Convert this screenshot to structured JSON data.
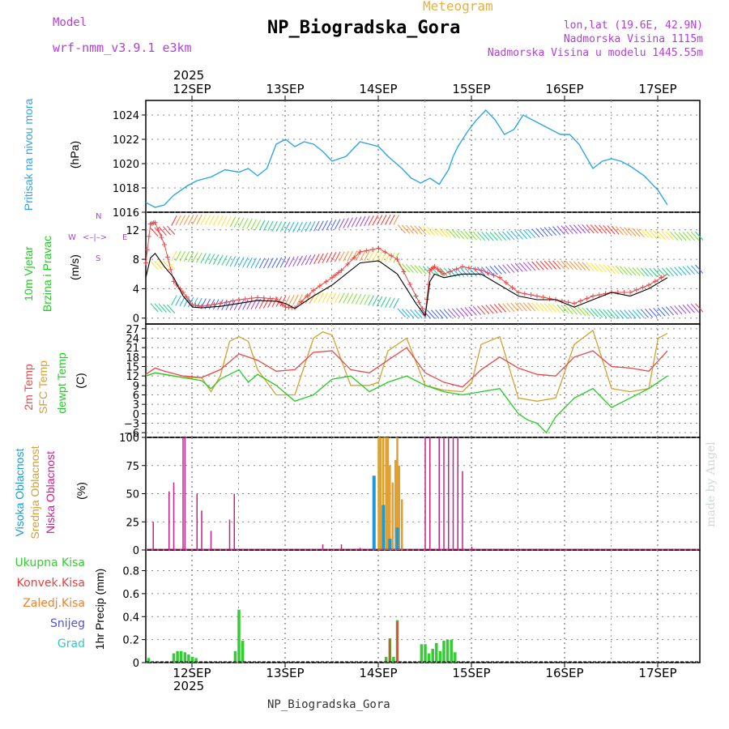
{
  "header": {
    "model_label": "Model",
    "model_name": "wrf-nmm_v3.9.1 e3km",
    "product": "Meteogram",
    "station": "NP_Biogradska_Gora",
    "coords": "lon,lat (19.6E, 42.9N)",
    "elevation": "Nadmorska Visina 1115m",
    "model_elevation": "Nadmorska Visina u modelu 1445.55m",
    "footer_station": "NP_Biogradska_Gora",
    "credit": "made by Angel"
  },
  "time_axis": {
    "year": "2025",
    "days": [
      "12SEP",
      "13SEP",
      "14SEP",
      "15SEP",
      "16SEP",
      "17SEP"
    ]
  },
  "colors": {
    "pressure": "#2aa6e8",
    "temp2m": "#e84848",
    "sfc_temp": "#d4a030",
    "dewpoint": "#22cc22",
    "high_cloud": "#1a9ad6",
    "mid_cloud": "#e0a030",
    "low_cloud": "#c8208a",
    "precip_total": "#33cc33",
    "precip_conv": "#e84040",
    "precip_freeze": "#f08030",
    "snow": "#5050e0",
    "hail": "#30c8c8",
    "wind_speed": "#000000",
    "wind_gust": "#e84848",
    "wind_dir_label": "#b040d8"
  },
  "chart_data": [
    {
      "type": "line",
      "title": "Pritisak na nivou mora",
      "ylabel": "(hPa)",
      "ylim": [
        1016,
        1025.2
      ],
      "yticks": [
        "1016",
        "1018",
        "1020",
        "1022",
        "1024"
      ],
      "series": [
        {
          "name": "MSL pressure",
          "x": [
            0,
            0.1,
            0.2,
            0.3,
            0.45,
            0.55,
            0.7,
            0.85,
            1,
            1.1,
            1.2,
            1.3,
            1.4,
            1.5,
            1.6,
            1.7,
            1.8,
            1.9,
            2,
            2.15,
            2.3,
            2.5,
            2.6,
            2.75,
            2.85,
            2.95,
            3.05,
            3.15,
            3.25,
            3.3,
            3.35,
            3.45,
            3.55,
            3.65,
            3.75,
            3.85,
            3.95,
            4.05,
            4.15,
            4.3,
            4.45,
            4.55,
            4.65,
            4.8,
            4.9,
            5.0,
            5.1,
            5.2,
            5.35,
            5.5,
            5.6
          ],
          "values": [
            1016.8,
            1016.4,
            1016.6,
            1017.4,
            1018.2,
            1018.6,
            1018.9,
            1019.5,
            1019.3,
            1019.6,
            1019.0,
            1019.6,
            1021.6,
            1022.0,
            1021.4,
            1021.8,
            1021.6,
            1021.0,
            1020.2,
            1020.6,
            1021.8,
            1021.4,
            1020.6,
            1019.6,
            1018.8,
            1018.4,
            1018.8,
            1018.3,
            1019.5,
            1020.6,
            1021.4,
            1022.6,
            1023.6,
            1024.4,
            1023.6,
            1022.4,
            1022.8,
            1024.0,
            1023.6,
            1023.0,
            1022.4,
            1022.4,
            1021.6,
            1019.6,
            1020.2,
            1020.4,
            1020.2,
            1019.8,
            1019.0,
            1017.8,
            1016.6
          ]
        }
      ]
    },
    {
      "type": "line",
      "title": "10m Vjetar Brzina i Pravac",
      "ylabel": "(m/s)",
      "ylim": [
        -0.8,
        14.4
      ],
      "yticks": [
        "0",
        "4",
        "8",
        "12"
      ],
      "direction_legend": [
        "N",
        "W",
        "E",
        "S"
      ],
      "series": [
        {
          "name": "wind speed",
          "x": [
            0,
            0.05,
            0.1,
            0.2,
            0.3,
            0.4,
            0.5,
            0.6,
            0.8,
            1.0,
            1.2,
            1.4,
            1.5,
            1.6,
            1.8,
            2.0,
            2.1,
            2.3,
            2.5,
            2.7,
            2.9,
            3.0,
            3.05,
            3.1,
            3.2,
            3.4,
            3.6,
            3.8,
            4.0,
            4.2,
            4.4,
            4.6,
            4.8,
            5.0,
            5.2,
            5.4,
            5.6
          ],
          "values": [
            5.5,
            8.2,
            8.8,
            7.0,
            5.5,
            3.0,
            1.5,
            1.4,
            1.6,
            2.0,
            2.4,
            2.3,
            2.0,
            1.3,
            3.0,
            4.5,
            5.5,
            7.5,
            7.8,
            6.0,
            2.0,
            0.3,
            5.0,
            6.0,
            5.5,
            6.0,
            6.0,
            4.5,
            3.0,
            2.5,
            2.5,
            1.5,
            2.5,
            3.5,
            3.0,
            4.0,
            5.5
          ]
        },
        {
          "name": "wind gust",
          "x": [
            0,
            0.05,
            0.1,
            0.2,
            0.3,
            0.4,
            0.5,
            0.6,
            0.8,
            1.0,
            1.2,
            1.4,
            1.5,
            1.6,
            1.8,
            2.0,
            2.1,
            2.3,
            2.5,
            2.7,
            2.9,
            3.0,
            3.05,
            3.1,
            3.2,
            3.4,
            3.6,
            3.8,
            4.0,
            4.2,
            4.4,
            4.6,
            4.8,
            5.0,
            5.2,
            5.4,
            5.6
          ],
          "values": [
            7.5,
            12.8,
            13.0,
            10.0,
            5.0,
            3.5,
            1.8,
            1.6,
            2.0,
            2.5,
            2.8,
            2.6,
            1.5,
            1.4,
            3.8,
            5.5,
            6.5,
            9.0,
            9.5,
            8.0,
            3.0,
            0.5,
            6.5,
            7.0,
            6.0,
            7.0,
            6.5,
            5.5,
            3.5,
            3.0,
            2.5,
            2.0,
            3.0,
            3.5,
            3.5,
            4.5,
            6.0
          ]
        }
      ]
    },
    {
      "type": "line",
      "title": "2m Temp / SFC Temp / dewpt Temp",
      "ylabel": "(C)",
      "ylim": [
        -7.5,
        28.5
      ],
      "yticks": [
        "−6",
        "−3",
        "0",
        "3",
        "6",
        "9",
        "12",
        "15",
        "18",
        "21",
        "24",
        "27"
      ],
      "series": [
        {
          "name": "2m Temp",
          "x": [
            0,
            0.1,
            0.2,
            0.4,
            0.6,
            0.8,
            1.0,
            1.2,
            1.4,
            1.6,
            1.8,
            2.0,
            2.2,
            2.4,
            2.6,
            2.8,
            3.0,
            3.2,
            3.4,
            3.6,
            3.8,
            4.0,
            4.2,
            4.4,
            4.6,
            4.8,
            5.0,
            5.2,
            5.4,
            5.6
          ],
          "values": [
            12.5,
            14.5,
            13.5,
            12.0,
            11.5,
            14.0,
            19.0,
            17.0,
            13.5,
            14.0,
            19.5,
            20.0,
            14.0,
            13.0,
            17.0,
            21.0,
            13.0,
            10.0,
            8.5,
            14.0,
            18.0,
            14.5,
            12.5,
            12.0,
            18.0,
            20.0,
            15.0,
            14.5,
            13.5,
            20.0
          ]
        },
        {
          "name": "SFC Temp",
          "x": [
            0,
            0.1,
            0.2,
            0.4,
            0.6,
            0.7,
            0.8,
            0.9,
            1.0,
            1.1,
            1.2,
            1.4,
            1.6,
            1.8,
            1.9,
            2.0,
            2.2,
            2.4,
            2.5,
            2.6,
            2.8,
            3.0,
            3.2,
            3.4,
            3.5,
            3.6,
            3.8,
            4.0,
            4.2,
            4.4,
            4.6,
            4.8,
            5.0,
            5.2,
            5.4,
            5.5,
            5.6
          ],
          "values": [
            12.0,
            13.0,
            12.5,
            11.5,
            11.5,
            7.0,
            12.0,
            23.0,
            24.5,
            23.0,
            14.0,
            6.0,
            6.0,
            24.0,
            26.0,
            25.0,
            9.0,
            9.0,
            10.0,
            20.0,
            24.0,
            9.0,
            7.5,
            7.0,
            10.0,
            22.0,
            24.5,
            5.0,
            4.0,
            5.0,
            22.0,
            26.5,
            8.0,
            7.0,
            8.0,
            24.0,
            25.5
          ]
        },
        {
          "name": "dewpt Temp",
          "x": [
            0,
            0.1,
            0.2,
            0.4,
            0.6,
            0.7,
            0.8,
            1.0,
            1.1,
            1.2,
            1.4,
            1.6,
            1.8,
            2.0,
            2.2,
            2.4,
            2.6,
            2.8,
            3.0,
            3.2,
            3.4,
            3.6,
            3.8,
            4.0,
            4.1,
            4.2,
            4.3,
            4.4,
            4.6,
            4.8,
            5.0,
            5.2,
            5.4,
            5.6
          ],
          "values": [
            12.0,
            13.0,
            12.5,
            11.5,
            10.5,
            8.0,
            11.0,
            14.0,
            10.0,
            12.5,
            9.0,
            4.0,
            6.0,
            11.0,
            12.0,
            7.0,
            10.0,
            12.0,
            9.0,
            7.0,
            6.0,
            7.0,
            8.0,
            0.0,
            -2.0,
            -3.0,
            -6.0,
            -1.0,
            5.0,
            8.0,
            2.0,
            5.0,
            8.0,
            12.0
          ]
        }
      ]
    },
    {
      "type": "bar",
      "title": "Visoka / Srednja / Niska Oblacnost",
      "ylabel": "(%)",
      "ylim": [
        0,
        100
      ],
      "yticks": [
        "0",
        "25",
        "50",
        "75",
        "100"
      ],
      "series": [
        {
          "name": "Niska Oblacnost",
          "x": [
            0.08,
            0.25,
            0.3,
            0.4,
            0.42,
            0.55,
            0.6,
            0.7,
            0.9,
            0.95,
            1.9,
            2.1,
            2.3,
            2.5,
            2.6,
            3.0,
            3.05,
            3.15,
            3.2,
            3.25,
            3.3,
            3.35,
            3.4,
            3.5
          ],
          "values": [
            25,
            52,
            60,
            100,
            100,
            50,
            35,
            17,
            27,
            50,
            5,
            5,
            2,
            3,
            2,
            100,
            100,
            100,
            100,
            100,
            100,
            100,
            70,
            3
          ]
        },
        {
          "name": "Srednja Oblacnost",
          "x": [
            2.5,
            2.52,
            2.55,
            2.58,
            2.6,
            2.62,
            2.65,
            2.68,
            2.7,
            2.72,
            2.75
          ],
          "values": [
            100,
            100,
            100,
            100,
            100,
            75,
            60,
            80,
            100,
            75,
            45
          ]
        },
        {
          "name": "Visoka Oblacnost",
          "x": [
            2.45,
            2.55,
            2.62,
            2.7
          ],
          "values": [
            66,
            40,
            10,
            20
          ]
        }
      ]
    },
    {
      "type": "bar",
      "title": "1hr Precip",
      "ylabel": "1hr Precip (mm)",
      "ylim": [
        0,
        0.98
      ],
      "yticks": [
        "0",
        "0.2",
        "0.4",
        "0.6",
        "0.8"
      ],
      "legend": [
        "Ukupna Kisa",
        "Konvek.Kisa",
        "Zaledj.Kisa",
        "Snijeg",
        "Grad"
      ],
      "series": [
        {
          "name": "Ukupna Kisa",
          "x": [
            0.03,
            0.3,
            0.34,
            0.38,
            0.42,
            0.46,
            0.5,
            0.54,
            0.96,
            1.0,
            1.04,
            2.58,
            2.62,
            2.66,
            2.7,
            2.96,
            3.0,
            3.04,
            3.08,
            3.12,
            3.16,
            3.2,
            3.24,
            3.28,
            3.32
          ],
          "values": [
            0.04,
            0.08,
            0.1,
            0.1,
            0.09,
            0.07,
            0.05,
            0.04,
            0.1,
            0.46,
            0.19,
            0.05,
            0.21,
            0.05,
            0.37,
            0.16,
            0.16,
            0.08,
            0.12,
            0.17,
            0.1,
            0.19,
            0.2,
            0.2,
            0.09
          ]
        },
        {
          "name": "Konvek.Kisa",
          "x": [
            2.62,
            2.7
          ],
          "values": [
            0.21,
            0.36
          ]
        }
      ]
    }
  ]
}
